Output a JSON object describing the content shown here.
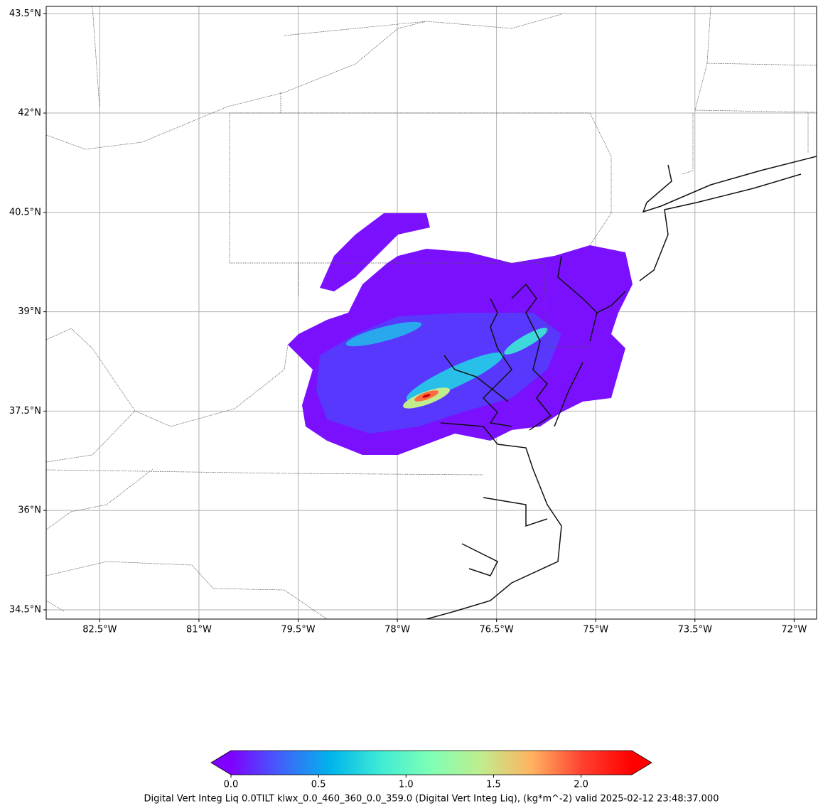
{
  "chart_data": {
    "type": "map",
    "xlim": [
      -83.31,
      -71.66
    ],
    "ylim": [
      34.36,
      43.61
    ],
    "xticks": [
      {
        "value": -82.5,
        "label": "82.5°W"
      },
      {
        "value": -81,
        "label": "81°W"
      },
      {
        "value": -79.5,
        "label": "79.5°W"
      },
      {
        "value": -78,
        "label": "78°W"
      },
      {
        "value": -76.5,
        "label": "76.5°W"
      },
      {
        "value": -75,
        "label": "75°W"
      },
      {
        "value": -73.5,
        "label": "73.5°W"
      },
      {
        "value": -72,
        "label": "72°W"
      }
    ],
    "yticks": [
      {
        "value": 34.5,
        "label": "34.5°N"
      },
      {
        "value": 36,
        "label": "36°N"
      },
      {
        "value": 37.5,
        "label": "37.5°N"
      },
      {
        "value": 39,
        "label": "39°N"
      },
      {
        "value": 40.5,
        "label": "40.5°N"
      },
      {
        "value": 42,
        "label": "42°N"
      },
      {
        "value": 43.5,
        "label": "43.5°N"
      }
    ],
    "grid": true,
    "colorbar": {
      "label": "Digital Vert Integ Liq 0.0TILT klwx_0.0_460_360_0.0_359.0 (Digital Vert Integ Liq), (kg*m^-2) valid 2025-02-12 23:48:37.000",
      "lim": [
        0,
        2.29
      ],
      "ticks": [
        {
          "value": 0,
          "label": "0.0"
        },
        {
          "value": 0.5,
          "label": "0.5"
        },
        {
          "value": 1,
          "label": "1.0"
        },
        {
          "value": 1.5,
          "label": "1.5"
        },
        {
          "value": 2,
          "label": "2.0"
        }
      ],
      "colormap": [
        "#8000ff",
        "#4062fa",
        "#00b5eb",
        "#40ecd4",
        "#80ffb4",
        "#c0ec8d",
        "#ffb360",
        "#ff4130",
        "#ff0000"
      ]
    }
  }
}
